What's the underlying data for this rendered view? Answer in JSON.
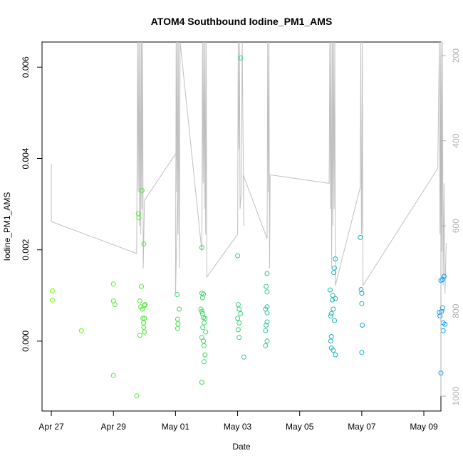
{
  "chart_data": {
    "type": "scatter",
    "title": "ATOM4 Southbound Iodine_PM1_AMS",
    "xlabel": "Date",
    "ylabel": "Iodine_PM1_AMS",
    "x_range_days": [
      -0.3,
      12.55
    ],
    "x_ticks": [
      {
        "label": "Apr 27",
        "day": 0
      },
      {
        "label": "Apr 29",
        "day": 2
      },
      {
        "label": "May 01",
        "day": 4
      },
      {
        "label": "May 03",
        "day": 6
      },
      {
        "label": "May 05",
        "day": 8
      },
      {
        "label": "May 07",
        "day": 10
      },
      {
        "label": "May 09",
        "day": 12
      }
    ],
    "x_reference": "Apr 27 = day 0",
    "ylim": [
      -0.00153,
      0.00655
    ],
    "y_ticks": [
      "0.000",
      "0.002",
      "0.004",
      "0.006"
    ],
    "y_tick_values": [
      0.0,
      0.002,
      0.004,
      0.006
    ],
    "secondary_axis": {
      "ylim": [
        1035,
        168
      ],
      "ticks": [
        "200",
        "400",
        "600",
        "800",
        "1000"
      ],
      "tick_values": [
        200,
        400,
        600,
        800,
        1000
      ],
      "color": "#b0b0b0"
    },
    "grid": false,
    "legend": "none",
    "point_colors": {
      "start": "#66ff00",
      "end": "#0099ff"
    },
    "series": [
      {
        "points": [
          [
            0.03,
            0.0011
          ],
          [
            0.03,
            0.0009
          ],
          [
            0.97,
            0.00023
          ],
          [
            2.0,
            0.00125
          ],
          [
            2.0,
            0.00088
          ],
          [
            2.05,
            0.0008
          ],
          [
            2.0,
            -0.00075
          ],
          [
            2.75,
            -0.0012
          ],
          [
            2.8,
            0.00279
          ],
          [
            2.82,
            0.0027
          ],
          [
            2.85,
            0.00088
          ],
          [
            2.88,
            0.00075
          ],
          [
            2.9,
            0.0012
          ],
          [
            2.92,
            0.0033
          ],
          [
            2.93,
            0.0007
          ],
          [
            2.95,
            0.0005
          ],
          [
            2.97,
            0.0004
          ],
          [
            2.98,
            0.0003
          ],
          [
            3.0,
            0.0002
          ],
          [
            2.85,
            0.00013
          ],
          [
            2.98,
            0.00213
          ],
          [
            3.0,
            0.0005
          ],
          [
            3.02,
            0.0008
          ],
          [
            3.0,
            0.00078
          ],
          [
            4.05,
            0.00102
          ],
          [
            4.07,
            0.00048
          ],
          [
            4.07,
            0.00028
          ],
          [
            4.12,
            0.0007
          ],
          [
            4.08,
            0.00038
          ],
          [
            4.85,
            0.00205
          ],
          [
            4.85,
            0.00105
          ],
          [
            4.87,
            0.00095
          ],
          [
            4.9,
            0.00103
          ],
          [
            4.82,
            0.0007
          ],
          [
            4.85,
            0.00065
          ],
          [
            4.87,
            0.0006
          ],
          [
            4.9,
            0.00052
          ],
          [
            4.92,
            0.0004
          ],
          [
            4.88,
            0.0003
          ],
          [
            4.95,
            0.0005
          ],
          [
            4.97,
            0.0002
          ],
          [
            4.85,
            8e-05
          ],
          [
            4.9,
            0.0
          ],
          [
            4.92,
            -0.0001
          ],
          [
            4.95,
            -0.0003
          ],
          [
            4.92,
            -0.00045
          ],
          [
            4.85,
            -0.0009
          ],
          [
            6.0,
            0.00187
          ],
          [
            6.02,
            0.0008
          ],
          [
            6.05,
            0.0007
          ],
          [
            6.1,
            0.0006
          ],
          [
            6.0,
            0.0005
          ],
          [
            6.05,
            0.0004
          ],
          [
            6.02,
            0.00025
          ],
          [
            6.05,
            8e-05
          ],
          [
            6.1,
            0.0062
          ],
          [
            6.2,
            -0.00035
          ],
          [
            6.95,
            0.00148
          ],
          [
            6.92,
            0.0012
          ],
          [
            6.95,
            0.00108
          ],
          [
            6.9,
            0.0007
          ],
          [
            6.95,
            0.00075
          ],
          [
            6.95,
            0.00062
          ],
          [
            6.95,
            0.00042
          ],
          [
            6.92,
            0.00035
          ],
          [
            6.9,
            0.00023
          ],
          [
            6.95,
            0.0
          ],
          [
            6.9,
            -0.0001
          ],
          [
            8.98,
            0.00112
          ],
          [
            9.0,
            0.00055
          ],
          [
            9.02,
            0.0006
          ],
          [
            9.08,
            0.0007
          ],
          [
            9.05,
            0.0009
          ],
          [
            9.07,
            0.001
          ],
          [
            9.12,
            0.0016
          ],
          [
            9.15,
            0.0018
          ],
          [
            9.1,
            0.0015
          ],
          [
            9.15,
            0.00093
          ],
          [
            9.12,
            0.00045
          ],
          [
            9.02,
            0.0001
          ],
          [
            9.0,
            0.0
          ],
          [
            9.02,
            -0.00015
          ],
          [
            9.08,
            -0.0002
          ],
          [
            9.15,
            -0.0003
          ],
          [
            9.95,
            0.00227
          ],
          [
            9.98,
            0.00113
          ],
          [
            10.0,
            0.00105
          ],
          [
            10.0,
            0.00082
          ],
          [
            10.02,
            0.00035
          ],
          [
            10.0,
            -0.00025
          ],
          [
            12.55,
            0.00133
          ],
          [
            12.6,
            0.00135
          ],
          [
            12.65,
            0.00142
          ],
          [
            12.52,
            0.00055
          ],
          [
            12.57,
            0.00065
          ],
          [
            12.6,
            0.00073
          ],
          [
            12.62,
            0.0004
          ],
          [
            12.68,
            0.00037
          ],
          [
            12.62,
            0.00023
          ],
          [
            12.55,
            -0.0007
          ],
          [
            12.5,
            0.00063
          ]
        ]
      },
      {
        "axis": "secondary",
        "color": "#c0c0c0",
        "line": [
          [
            0.0,
            455
          ],
          [
            0.0,
            590
          ],
          [
            2.75,
            665
          ],
          [
            2.78,
            168
          ],
          [
            2.8,
            520
          ],
          [
            2.82,
            168
          ],
          [
            2.84,
            600
          ],
          [
            2.86,
            168
          ],
          [
            2.88,
            620
          ],
          [
            2.9,
            168
          ],
          [
            2.92,
            560
          ],
          [
            2.94,
            168
          ],
          [
            2.96,
            700
          ],
          [
            3.0,
            540
          ],
          [
            4.1,
            420
          ],
          [
            4.0,
            760
          ],
          [
            4.02,
            168
          ],
          [
            4.04,
            520
          ],
          [
            4.06,
            168
          ],
          [
            4.08,
            620
          ],
          [
            4.1,
            168
          ],
          [
            4.12,
            700
          ],
          [
            4.15,
            168
          ],
          [
            4.85,
            660
          ],
          [
            4.87,
            168
          ],
          [
            4.89,
            500
          ],
          [
            4.91,
            168
          ],
          [
            4.93,
            560
          ],
          [
            4.95,
            168
          ],
          [
            4.97,
            620
          ],
          [
            4.99,
            168
          ],
          [
            5.01,
            720
          ],
          [
            6.0,
            620
          ],
          [
            6.02,
            168
          ],
          [
            6.04,
            420
          ],
          [
            6.06,
            168
          ],
          [
            6.08,
            560
          ],
          [
            6.12,
            520
          ],
          [
            6.15,
            168
          ],
          [
            6.2,
            600
          ],
          [
            6.18,
            480
          ],
          [
            6.95,
            630
          ],
          [
            6.97,
            168
          ],
          [
            6.99,
            520
          ],
          [
            7.01,
            168
          ],
          [
            7.03,
            700
          ],
          [
            7.05,
            480
          ],
          [
            8.95,
            500
          ],
          [
            8.97,
            168
          ],
          [
            8.99,
            560
          ],
          [
            9.01,
            168
          ],
          [
            9.03,
            700
          ],
          [
            9.05,
            168
          ],
          [
            9.07,
            600
          ],
          [
            9.09,
            168
          ],
          [
            9.11,
            560
          ],
          [
            9.13,
            168
          ],
          [
            9.15,
            740
          ],
          [
            9.95,
            510
          ],
          [
            9.97,
            168
          ],
          [
            9.99,
            620
          ],
          [
            10.0,
            600
          ],
          [
            10.02,
            168
          ],
          [
            10.04,
            740
          ],
          [
            12.45,
            465
          ],
          [
            12.5,
            168
          ],
          [
            12.52,
            620
          ],
          [
            12.55,
            168
          ],
          [
            12.58,
            660
          ],
          [
            12.6,
            168
          ],
          [
            12.62,
            740
          ],
          [
            12.65,
            500
          ],
          [
            12.68,
            760
          ],
          [
            12.72,
            640
          ]
        ]
      }
    ]
  }
}
